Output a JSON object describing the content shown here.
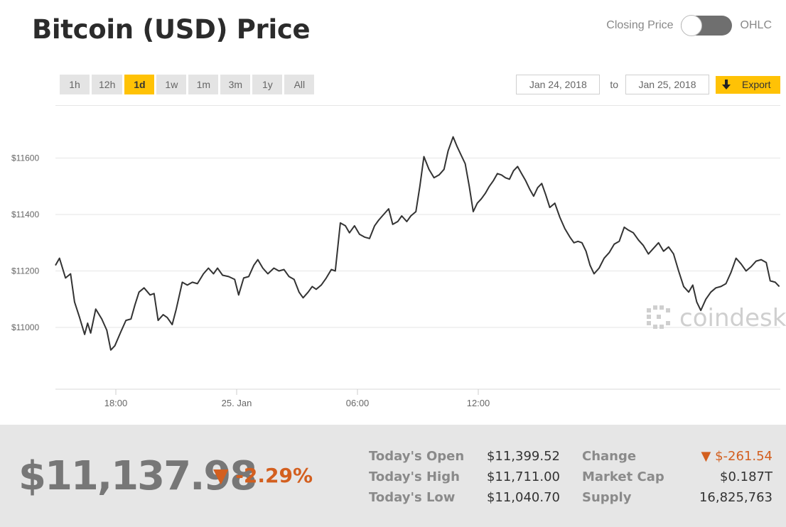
{
  "header": {
    "title": "Bitcoin (USD) Price",
    "toggle_left": "Closing Price",
    "toggle_right": "OHLC"
  },
  "ranges": [
    "1h",
    "12h",
    "1d",
    "1w",
    "1m",
    "3m",
    "1y",
    "All"
  ],
  "active_range": "1d",
  "date_range": {
    "from": "Jan 24, 2018",
    "to_label": "to",
    "to": "Jan 25, 2018"
  },
  "export_label": "Export",
  "colors": {
    "accent": "#ffc205",
    "negative": "#d35f1f",
    "line": "#333333"
  },
  "chart_data": {
    "type": "line",
    "title": "",
    "xlabel": "",
    "ylabel": "",
    "x_ticks": [
      "18:00",
      "25. Jan",
      "06:00",
      "12:00"
    ],
    "y_ticks": [
      "$11600",
      "$11400",
      "$11200",
      "$11000"
    ],
    "ylim": [
      10800,
      11800
    ],
    "grid": true,
    "watermark": "coindesk",
    "series": [
      {
        "x_unit": "hours_since_15:00_Jan24",
        "points": [
          [
            0.0,
            11220
          ],
          [
            0.2,
            11245
          ],
          [
            0.5,
            11175
          ],
          [
            0.75,
            11190
          ],
          [
            0.95,
            11090
          ],
          [
            1.2,
            11035
          ],
          [
            1.45,
            10975
          ],
          [
            1.6,
            11015
          ],
          [
            1.75,
            10980
          ],
          [
            2.0,
            11065
          ],
          [
            2.3,
            11030
          ],
          [
            2.55,
            10990
          ],
          [
            2.75,
            10920
          ],
          [
            2.95,
            10935
          ],
          [
            3.25,
            10985
          ],
          [
            3.5,
            11025
          ],
          [
            3.75,
            11030
          ],
          [
            3.95,
            11080
          ],
          [
            4.15,
            11125
          ],
          [
            4.4,
            11140
          ],
          [
            4.7,
            11115
          ],
          [
            4.9,
            11120
          ],
          [
            5.1,
            11025
          ],
          [
            5.35,
            11045
          ],
          [
            5.55,
            11035
          ],
          [
            5.8,
            11010
          ],
          [
            6.0,
            11065
          ],
          [
            6.3,
            11160
          ],
          [
            6.55,
            11150
          ],
          [
            6.8,
            11160
          ],
          [
            7.05,
            11155
          ],
          [
            7.35,
            11190
          ],
          [
            7.6,
            11210
          ],
          [
            7.85,
            11190
          ],
          [
            8.05,
            11210
          ],
          [
            8.3,
            11185
          ],
          [
            8.6,
            11180
          ],
          [
            8.9,
            11170
          ],
          [
            9.1,
            11115
          ],
          [
            9.35,
            11175
          ],
          [
            9.6,
            11180
          ],
          [
            9.85,
            11220
          ],
          [
            10.05,
            11240
          ],
          [
            10.3,
            11210
          ],
          [
            10.55,
            11190
          ],
          [
            10.85,
            11210
          ],
          [
            11.1,
            11200
          ],
          [
            11.35,
            11205
          ],
          [
            11.6,
            11180
          ],
          [
            11.85,
            11170
          ],
          [
            12.1,
            11125
          ],
          [
            12.3,
            11105
          ],
          [
            12.55,
            11125
          ],
          [
            12.75,
            11145
          ],
          [
            12.95,
            11135
          ],
          [
            13.2,
            11150
          ],
          [
            13.45,
            11175
          ],
          [
            13.7,
            11205
          ],
          [
            13.9,
            11200
          ],
          [
            14.15,
            11370
          ],
          [
            14.4,
            11360
          ],
          [
            14.6,
            11335
          ],
          [
            14.85,
            11360
          ],
          [
            15.1,
            11330
          ],
          [
            15.35,
            11320
          ],
          [
            15.6,
            11315
          ],
          [
            15.85,
            11360
          ],
          [
            16.05,
            11380
          ],
          [
            16.3,
            11400
          ],
          [
            16.55,
            11420
          ],
          [
            16.75,
            11365
          ],
          [
            17.0,
            11375
          ],
          [
            17.2,
            11395
          ],
          [
            17.45,
            11375
          ],
          [
            17.65,
            11395
          ],
          [
            17.9,
            11410
          ],
          [
            18.1,
            11500
          ],
          [
            18.3,
            11605
          ],
          [
            18.55,
            11560
          ],
          [
            18.8,
            11530
          ],
          [
            19.05,
            11540
          ],
          [
            19.3,
            11560
          ],
          [
            19.5,
            11625
          ],
          [
            19.75,
            11675
          ],
          [
            19.95,
            11640
          ],
          [
            20.15,
            11610
          ],
          [
            20.35,
            11580
          ],
          [
            20.55,
            11500
          ],
          [
            20.75,
            11410
          ],
          [
            20.95,
            11440
          ],
          [
            21.15,
            11455
          ],
          [
            21.35,
            11475
          ],
          [
            21.55,
            11500
          ],
          [
            21.75,
            11520
          ],
          [
            21.95,
            11545
          ],
          [
            22.15,
            11540
          ],
          [
            22.35,
            11530
          ],
          [
            22.55,
            11525
          ],
          [
            22.75,
            11555
          ],
          [
            22.95,
            11570
          ],
          [
            23.15,
            11545
          ],
          [
            23.35,
            11520
          ],
          [
            23.55,
            11490
          ],
          [
            23.75,
            11465
          ],
          [
            23.95,
            11495
          ],
          [
            24.15,
            11510
          ],
          [
            24.35,
            11470
          ],
          [
            24.55,
            11425
          ],
          [
            24.8,
            11440
          ],
          [
            25.05,
            11390
          ],
          [
            25.3,
            11350
          ],
          [
            25.55,
            11320
          ],
          [
            25.75,
            11300
          ],
          [
            25.95,
            11305
          ],
          [
            26.15,
            11300
          ],
          [
            26.35,
            11270
          ],
          [
            26.55,
            11220
          ],
          [
            26.75,
            11190
          ],
          [
            27.0,
            11210
          ],
          [
            27.25,
            11245
          ],
          [
            27.5,
            11265
          ],
          [
            27.75,
            11295
          ],
          [
            28.0,
            11305
          ],
          [
            28.25,
            11355
          ],
          [
            28.45,
            11345
          ],
          [
            28.7,
            11335
          ],
          [
            28.95,
            11310
          ],
          [
            29.2,
            11290
          ],
          [
            29.45,
            11260
          ],
          [
            29.7,
            11280
          ],
          [
            29.95,
            11300
          ],
          [
            30.2,
            11270
          ],
          [
            30.45,
            11285
          ],
          [
            30.7,
            11260
          ],
          [
            30.95,
            11200
          ],
          [
            31.2,
            11145
          ],
          [
            31.45,
            11125
          ],
          [
            31.65,
            11150
          ],
          [
            31.85,
            11090
          ],
          [
            32.05,
            11060
          ],
          [
            32.3,
            11100
          ],
          [
            32.55,
            11125
          ],
          [
            32.8,
            11140
          ],
          [
            33.05,
            11145
          ],
          [
            33.3,
            11155
          ],
          [
            33.55,
            11195
          ],
          [
            33.8,
            11245
          ],
          [
            34.05,
            11225
          ],
          [
            34.3,
            11200
          ],
          [
            34.55,
            11215
          ],
          [
            34.8,
            11235
          ],
          [
            35.05,
            11240
          ],
          [
            35.3,
            11230
          ],
          [
            35.5,
            11165
          ],
          [
            35.75,
            11160
          ],
          [
            35.95,
            11145
          ]
        ]
      }
    ]
  },
  "summary": {
    "price": "$11,137.98",
    "change_pct": "▼ -2.29%",
    "open_label": "Today's Open",
    "open_value": "$11,399.52",
    "high_label": "Today's High",
    "high_value": "$11,711.00",
    "low_label": "Today's Low",
    "low_value": "$11,040.70",
    "change_label": "Change",
    "change_value": "▼ $-261.54",
    "mcap_label": "Market Cap",
    "mcap_value": "$0.187T",
    "supply_label": "Supply",
    "supply_value": "16,825,763"
  }
}
